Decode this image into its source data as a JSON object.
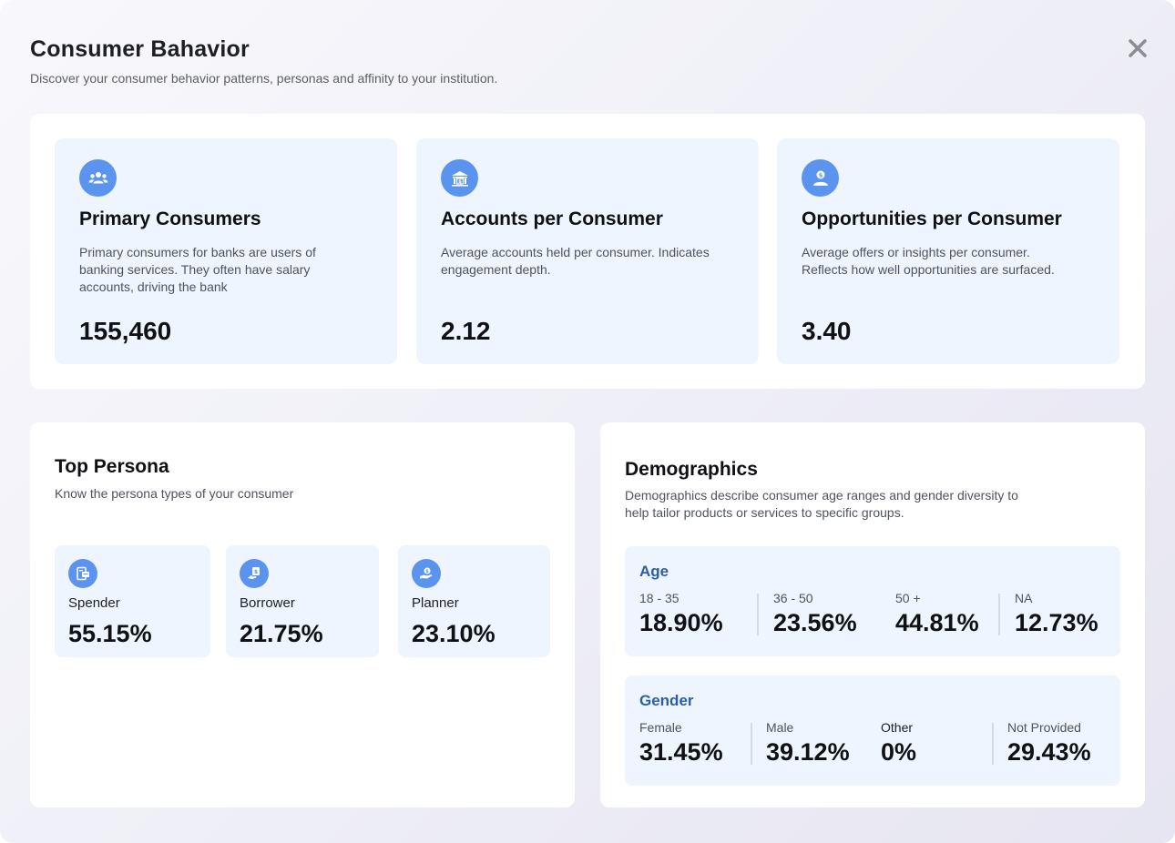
{
  "header": {
    "title": "Consumer Bahavior",
    "subtitle": "Discover your consumer behavior patterns, personas and affinity to your institution."
  },
  "stats": [
    {
      "icon": "people-group-icon",
      "title": "Primary Consumers",
      "description": "Primary consumers for banks are users of banking services. They often have salary accounts, driving the bank",
      "value": "155,460"
    },
    {
      "icon": "bank-building-icon",
      "title": "Accounts per Consumer",
      "description": "Average accounts held per consumer. Indicates engagement depth.",
      "value": "2.12"
    },
    {
      "icon": "user-dollar-icon",
      "title": "Opportunities per Consumer",
      "description": "Average offers or insights per consumer. Reflects how well opportunities are surfaced.",
      "value": "3.40"
    }
  ],
  "persona": {
    "title": "Top Persona",
    "subtitle": "Know the persona types of your consumer",
    "items": [
      {
        "icon": "document-card-icon",
        "label": "Spender",
        "value": "55.15%"
      },
      {
        "icon": "loan-document-icon",
        "label": "Borrower",
        "value": "21.75%"
      },
      {
        "icon": "hand-coin-icon",
        "label": "Planner",
        "value": "23.10%"
      }
    ]
  },
  "demographics": {
    "title": "Demographics",
    "subtitle": "Demographics describe consumer age ranges and gender diversity to help tailor products or services to specific groups.",
    "age": {
      "label": "Age",
      "items": [
        {
          "label": "18 - 35",
          "value": "18.90%"
        },
        {
          "label": "36 - 50",
          "value": "23.56%"
        },
        {
          "label": "50 +",
          "value": "44.81%"
        },
        {
          "label": "NA",
          "value": "12.73%"
        }
      ]
    },
    "gender": {
      "label": "Gender",
      "items": [
        {
          "label": "Female",
          "value": "31.45%"
        },
        {
          "label": "Male",
          "value": "39.12%"
        },
        {
          "label": "Other",
          "value": "0%"
        },
        {
          "label": "Not Provided",
          "value": "29.43%"
        }
      ]
    }
  },
  "colors": {
    "accent": "#5b94ee",
    "panel": "#eef5fe",
    "box_label": "#2c5ea8"
  }
}
